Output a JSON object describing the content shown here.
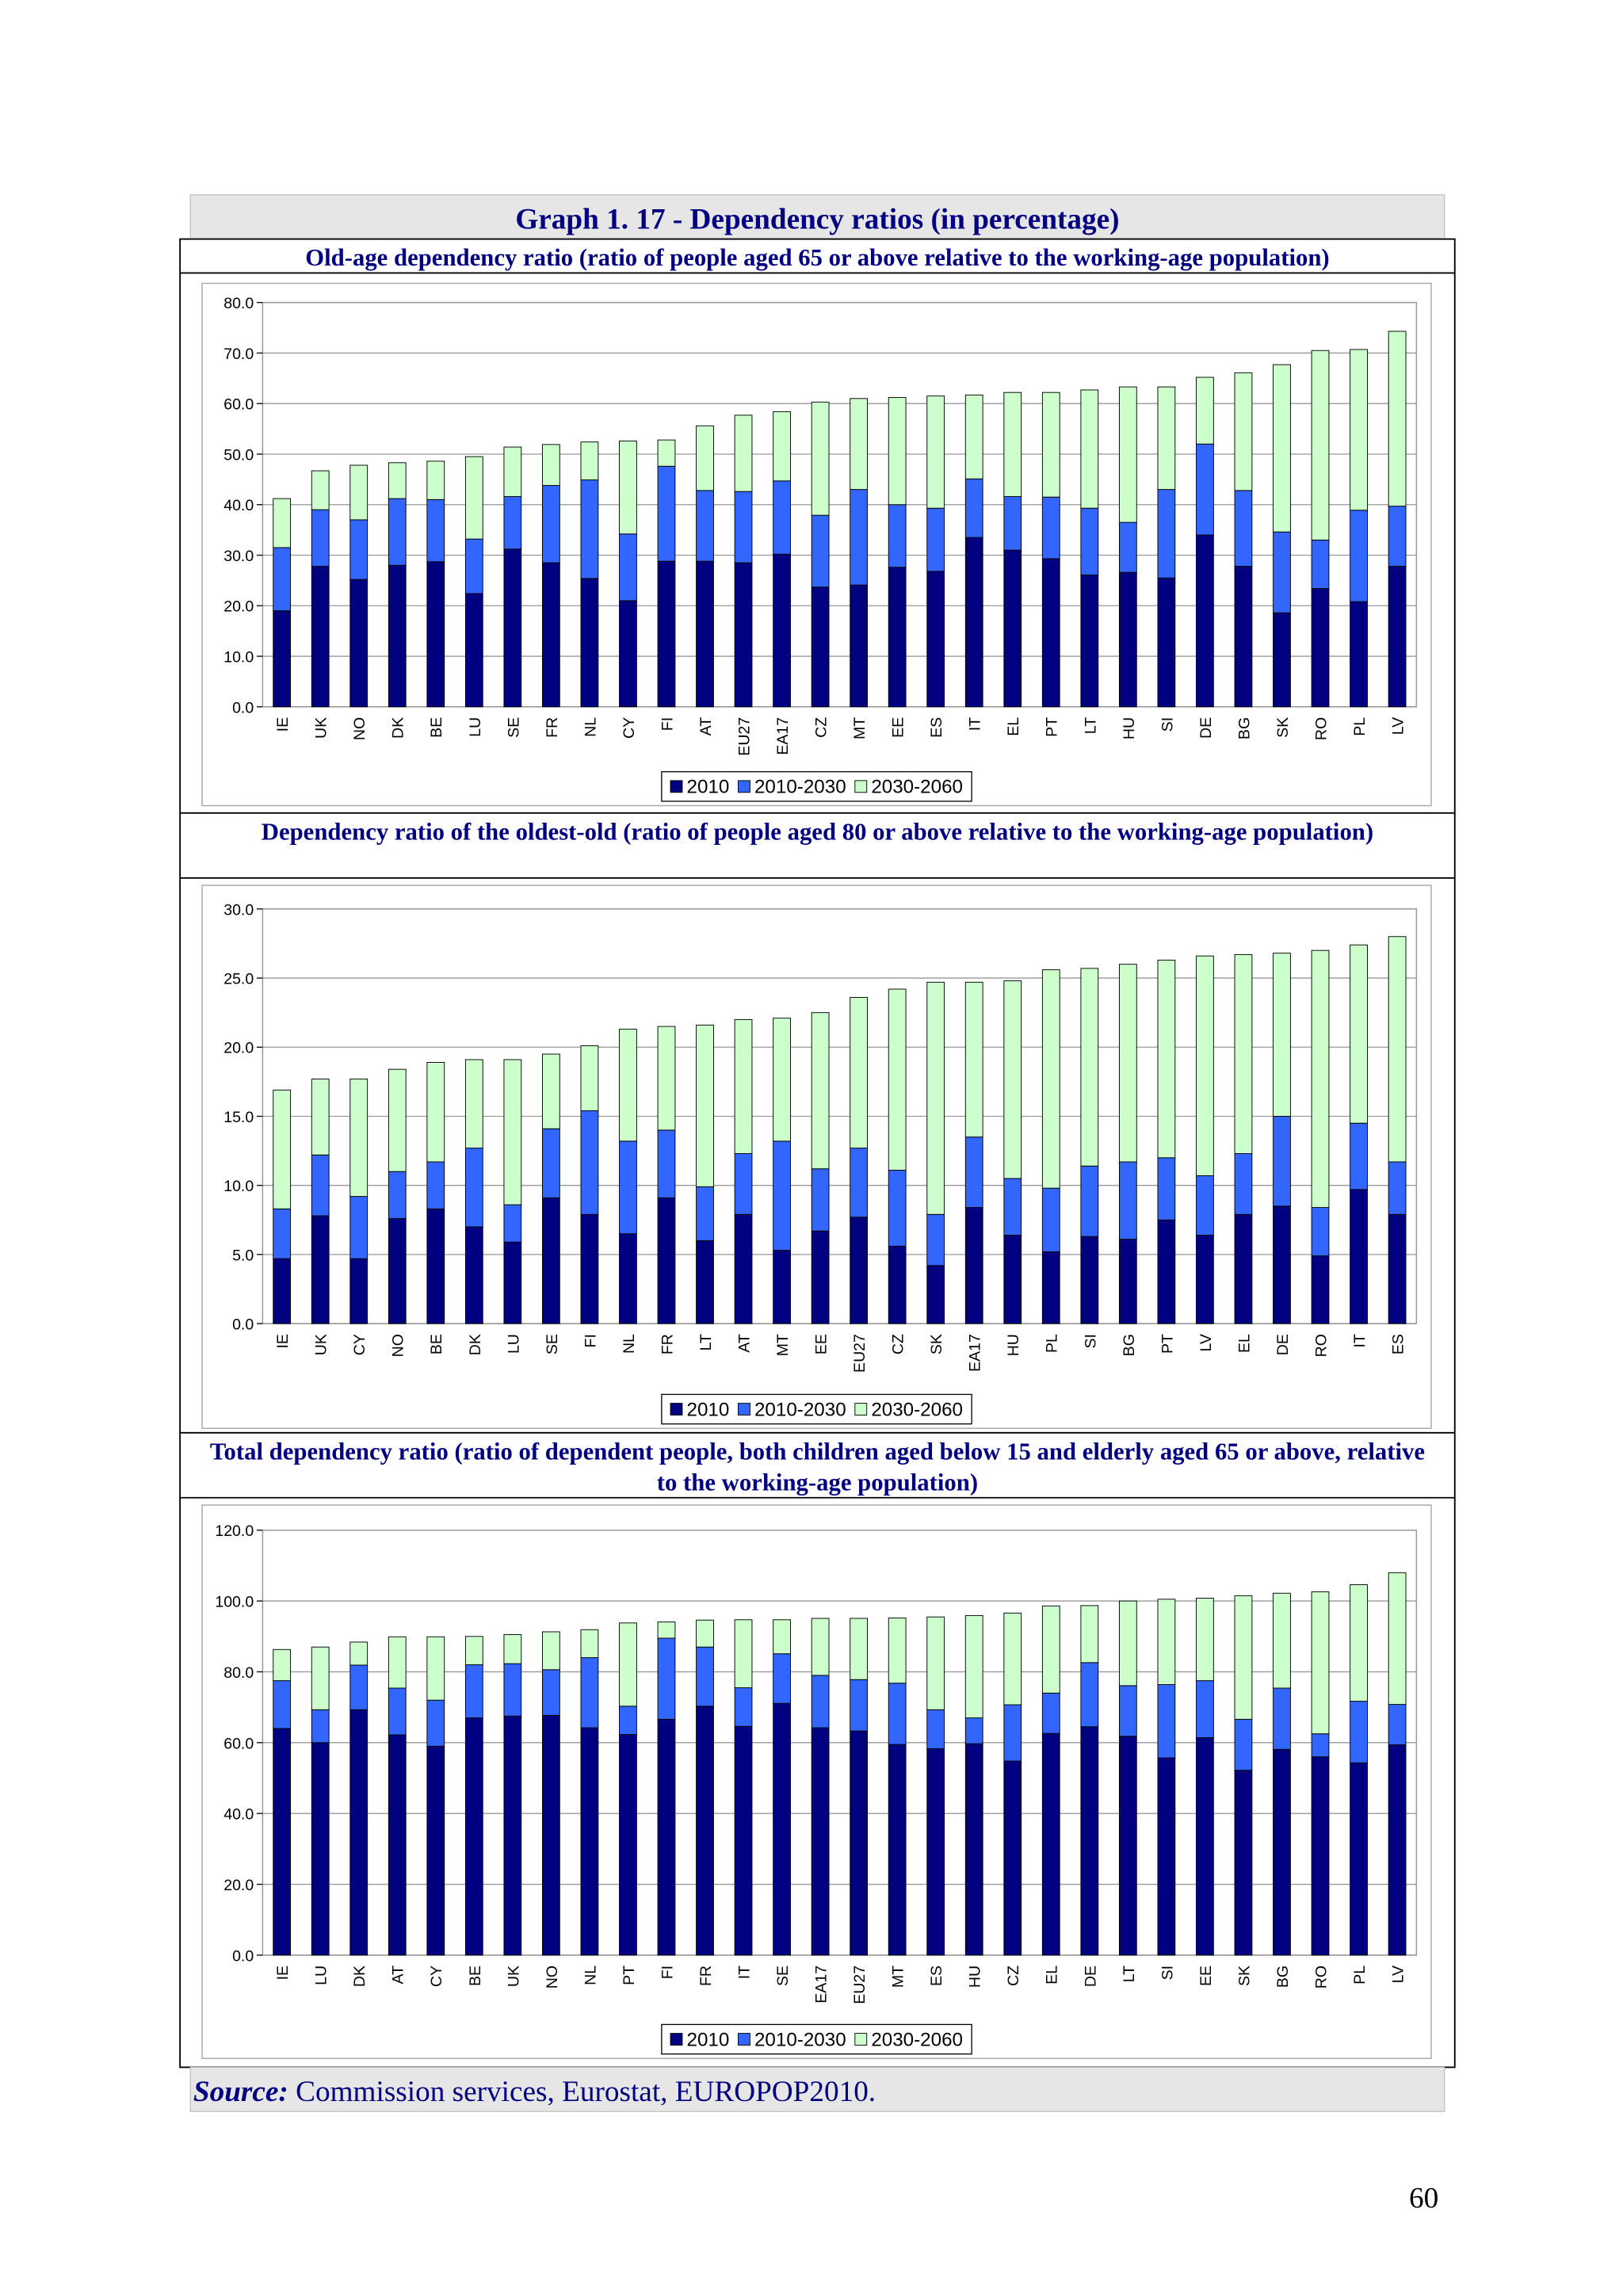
{
  "header": {
    "title": "Graph 1. 17 - Dependency ratios (in percentage)"
  },
  "chart_data": [
    {
      "type": "bar",
      "stacked": true,
      "title": "Old-age dependency ratio (ratio of people aged 65 or above relative to the working-age population)",
      "categories": [
        "IE",
        "UK",
        "NO",
        "DK",
        "BE",
        "LU",
        "SE",
        "FR",
        "NL",
        "CY",
        "FI",
        "AT",
        "EU27",
        "EA17",
        "CZ",
        "MT",
        "EE",
        "ES",
        "IT",
        "EL",
        "PT",
        "LT",
        "HU",
        "SI",
        "DE",
        "BG",
        "SK",
        "RO",
        "PL",
        "LV"
      ],
      "series": [
        {
          "name": "2010",
          "color": "#000080",
          "values": [
            19.0,
            27.8,
            25.2,
            28.0,
            28.7,
            22.4,
            31.2,
            28.5,
            25.4,
            21.0,
            28.8,
            28.8,
            28.5,
            30.2,
            23.7,
            24.1,
            27.6,
            26.8,
            33.5,
            31.0,
            29.3,
            26.1,
            26.6,
            25.5,
            34.0,
            27.8,
            18.6,
            23.4,
            20.8,
            27.8
          ]
        },
        {
          "name": "2010-2030",
          "color": "#3366ff",
          "values": [
            12.5,
            11.2,
            11.8,
            13.2,
            12.3,
            10.8,
            10.4,
            15.3,
            19.5,
            13.2,
            18.8,
            14.0,
            14.1,
            14.5,
            14.2,
            18.9,
            12.4,
            12.5,
            11.6,
            10.6,
            12.2,
            13.2,
            9.9,
            17.5,
            18.0,
            15.0,
            16.0,
            9.6,
            18.1,
            11.9
          ]
        },
        {
          "name": "2030-2060",
          "color": "#ccffcc",
          "values": [
            9.7,
            7.7,
            10.8,
            7.1,
            7.6,
            16.3,
            9.8,
            8.1,
            7.5,
            18.4,
            5.2,
            12.8,
            15.1,
            13.7,
            22.4,
            18.0,
            21.2,
            22.2,
            16.6,
            20.6,
            20.7,
            23.4,
            26.8,
            20.3,
            13.2,
            23.3,
            33.1,
            37.5,
            31.8,
            34.6
          ]
        }
      ],
      "ylim": [
        0,
        80
      ],
      "yticks": [
        {
          "value": 0,
          "label": "0.0"
        },
        {
          "value": 10,
          "label": "10.0"
        },
        {
          "value": 20,
          "label": "20.0"
        },
        {
          "value": 30,
          "label": "30.0"
        },
        {
          "value": 40,
          "label": "40.0"
        },
        {
          "value": 50,
          "label": "50.0"
        },
        {
          "value": 60,
          "label": "60.0"
        },
        {
          "value": 70,
          "label": "70.0"
        },
        {
          "value": 80,
          "label": "80.0"
        }
      ],
      "grid": true,
      "legend": "bottom"
    },
    {
      "type": "bar",
      "stacked": true,
      "title": "Dependency ratio of the oldest-old (ratio of people aged 80 or above relative to the working-age population)",
      "categories": [
        "IE",
        "UK",
        "CY",
        "NO",
        "BE",
        "DK",
        "LU",
        "SE",
        "FI",
        "NL",
        "FR",
        "LT",
        "AT",
        "MT",
        "EE",
        "EU27",
        "CZ",
        "SK",
        "EA17",
        "HU",
        "PL",
        "SI",
        "BG",
        "PT",
        "LV",
        "EL",
        "DE",
        "RO",
        "IT",
        "ES"
      ],
      "series": [
        {
          "name": "2010",
          "color": "#000080",
          "values": [
            4.7,
            7.8,
            4.7,
            7.6,
            8.3,
            7.0,
            5.9,
            9.1,
            7.9,
            6.5,
            9.1,
            6.0,
            7.9,
            5.3,
            6.7,
            7.7,
            5.6,
            4.2,
            8.4,
            6.4,
            5.2,
            6.3,
            6.1,
            7.5,
            6.4,
            7.9,
            8.5,
            4.9,
            9.7,
            7.9
          ]
        },
        {
          "name": "2010-2030",
          "color": "#3366ff",
          "values": [
            3.6,
            4.4,
            4.5,
            3.4,
            3.4,
            5.7,
            2.7,
            5.0,
            7.5,
            6.7,
            4.9,
            3.9,
            4.4,
            7.9,
            4.5,
            5.0,
            5.5,
            3.7,
            5.1,
            4.1,
            4.6,
            5.1,
            5.6,
            4.5,
            4.3,
            4.4,
            6.5,
            3.5,
            4.8,
            3.8
          ]
        },
        {
          "name": "2030-2060",
          "color": "#ccffcc",
          "values": [
            8.6,
            5.5,
            8.5,
            7.4,
            7.2,
            6.4,
            10.5,
            5.4,
            4.7,
            8.1,
            7.5,
            11.7,
            9.7,
            8.9,
            11.3,
            10.9,
            13.1,
            16.8,
            11.2,
            14.3,
            15.8,
            14.3,
            14.3,
            14.3,
            15.9,
            14.4,
            11.8,
            18.6,
            12.9,
            16.3
          ]
        }
      ],
      "ylim": [
        0,
        30
      ],
      "yticks": [
        {
          "value": 0,
          "label": "0.0"
        },
        {
          "value": 5,
          "label": "5.0"
        },
        {
          "value": 10,
          "label": "10.0"
        },
        {
          "value": 15,
          "label": "15.0"
        },
        {
          "value": 20,
          "label": "20.0"
        },
        {
          "value": 25,
          "label": "25.0"
        },
        {
          "value": 30,
          "label": "30.0"
        }
      ],
      "grid": true,
      "legend": "bottom"
    },
    {
      "type": "bar",
      "stacked": true,
      "title": "Total dependency ratio (ratio of dependent people, both children aged below 15 and elderly aged 65 or above, relative to the working-age population)",
      "categories": [
        "IE",
        "LU",
        "DK",
        "AT",
        "CY",
        "BE",
        "UK",
        "NO",
        "NL",
        "PT",
        "FI",
        "FR",
        "IT",
        "SE",
        "EA17",
        "EU27",
        "MT",
        "ES",
        "HU",
        "CZ",
        "EL",
        "DE",
        "LT",
        "SI",
        "EE",
        "SK",
        "BG",
        "RO",
        "PL",
        "LV"
      ],
      "series": [
        {
          "name": "2010",
          "color": "#000080",
          "values": [
            64.0,
            60.0,
            69.3,
            62.2,
            59.0,
            67.0,
            67.5,
            67.7,
            64.2,
            62.3,
            66.6,
            70.3,
            64.6,
            71.1,
            64.2,
            63.3,
            59.5,
            58.3,
            59.7,
            54.8,
            62.6,
            64.5,
            61.8,
            55.7,
            61.4,
            52.2,
            58.1,
            56.0,
            54.3,
            59.4
          ]
        },
        {
          "name": "2010-2030",
          "color": "#3366ff",
          "values": [
            13.5,
            9.3,
            12.6,
            13.2,
            13.0,
            15.0,
            14.8,
            12.9,
            19.8,
            8.0,
            22.9,
            16.7,
            10.9,
            14.0,
            14.8,
            14.5,
            17.3,
            11.0,
            7.3,
            15.9,
            11.4,
            18.1,
            14.3,
            20.7,
            16.1,
            14.4,
            17.3,
            6.5,
            17.4,
            11.4
          ]
        },
        {
          "name": "2030-2060",
          "color": "#ccffcc",
          "values": [
            8.8,
            17.7,
            6.5,
            14.5,
            17.9,
            8.0,
            8.2,
            10.7,
            7.9,
            23.5,
            4.6,
            7.6,
            19.2,
            9.6,
            16.1,
            17.3,
            18.4,
            26.2,
            28.9,
            25.9,
            24.6,
            16.1,
            23.9,
            24.1,
            23.3,
            34.9,
            26.8,
            40.1,
            32.9,
            37.2
          ]
        }
      ],
      "ylim": [
        0,
        120
      ],
      "yticks": [
        {
          "value": 0,
          "label": "0.0"
        },
        {
          "value": 20,
          "label": "20.0"
        },
        {
          "value": 40,
          "label": "40.0"
        },
        {
          "value": 60,
          "label": "60.0"
        },
        {
          "value": 80,
          "label": "80.0"
        },
        {
          "value": 100,
          "label": "100.0"
        },
        {
          "value": 120,
          "label": "120.0"
        }
      ],
      "grid": true,
      "legend": "bottom"
    }
  ],
  "source": {
    "label": "Source:",
    "text": "Commission services, Eurostat, EUROPOP2010."
  },
  "page_number": "60"
}
